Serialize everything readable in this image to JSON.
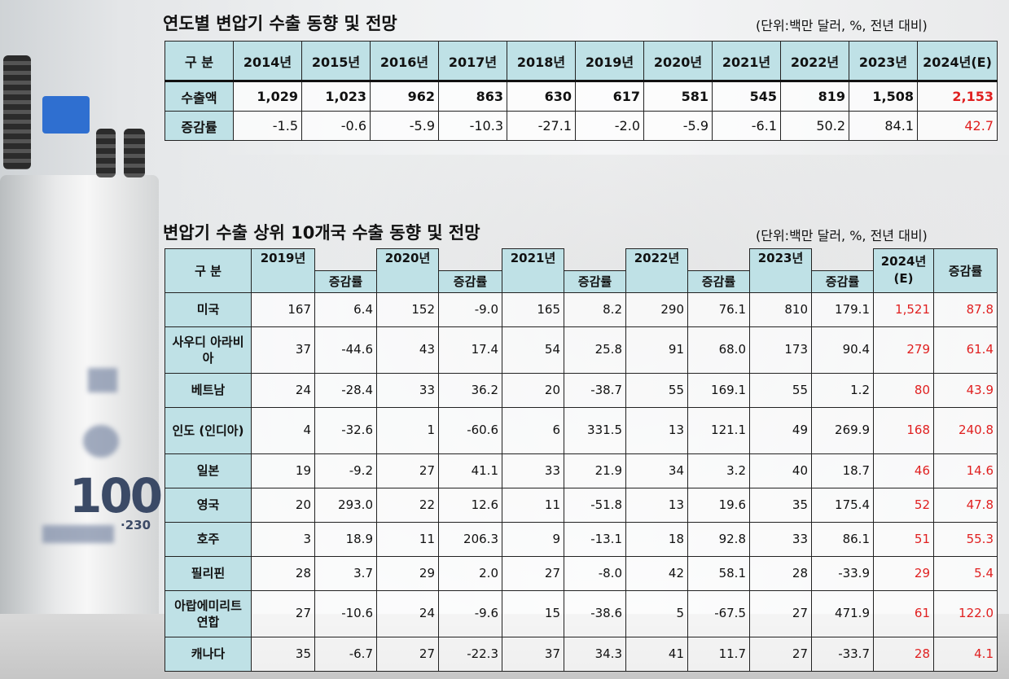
{
  "table1": {
    "title": "연도별 변압기 수출 동향 및 전망",
    "unit": "(단위:백만 달러, %, 전년 대비)",
    "corner": "구   분",
    "years": [
      "2014년",
      "2015년",
      "2016년",
      "2017년",
      "2018년",
      "2019년",
      "2020년",
      "2021년",
      "2022년",
      "2023년",
      "2024년(E)"
    ],
    "rows": [
      {
        "label": "수출액",
        "values": [
          "1,029",
          "1,023",
          "962",
          "863",
          "630",
          "617",
          "581",
          "545",
          "819",
          "1,508",
          "2,153"
        ]
      },
      {
        "label": "증감률",
        "values": [
          "-1.5",
          "-0.6",
          "-5.9",
          "-10.3",
          "-27.1",
          "-2.0",
          "-5.9",
          "-6.1",
          "50.2",
          "84.1",
          "42.7"
        ]
      }
    ]
  },
  "table2": {
    "title": "변압기 수출 상위 10개국 수출 동향 및 전망",
    "unit": "(단위:백만 달러, %, 전년 대비)",
    "corner": "구   분",
    "years": [
      "2019년",
      "2020년",
      "2021년",
      "2022년",
      "2023년",
      "2024년 (E)"
    ],
    "change_label": "증감률",
    "rows": [
      {
        "country": "미국",
        "values": [
          "167",
          "6.4",
          "152",
          "-9.0",
          "165",
          "8.2",
          "290",
          "76.1",
          "810",
          "179.1",
          "1,521",
          "87.8"
        ]
      },
      {
        "country": "사우디 아라비아",
        "values": [
          "37",
          "-44.6",
          "43",
          "17.4",
          "54",
          "25.8",
          "91",
          "68.0",
          "173",
          "90.4",
          "279",
          "61.4"
        ]
      },
      {
        "country": "베트남",
        "values": [
          "24",
          "-28.4",
          "33",
          "36.2",
          "20",
          "-38.7",
          "55",
          "169.1",
          "55",
          "1.2",
          "80",
          "43.9"
        ]
      },
      {
        "country": "인도 (인디아)",
        "values": [
          "4",
          "-32.6",
          "1",
          "-60.6",
          "6",
          "331.5",
          "13",
          "121.1",
          "49",
          "269.9",
          "168",
          "240.8"
        ]
      },
      {
        "country": "일본",
        "values": [
          "19",
          "-9.2",
          "27",
          "41.1",
          "33",
          "21.9",
          "34",
          "3.2",
          "40",
          "18.7",
          "46",
          "14.6"
        ]
      },
      {
        "country": "영국",
        "values": [
          "20",
          "293.0",
          "22",
          "12.6",
          "11",
          "-51.8",
          "13",
          "19.6",
          "35",
          "175.4",
          "52",
          "47.8"
        ]
      },
      {
        "country": "호주",
        "values": [
          "3",
          "18.9",
          "11",
          "206.3",
          "9",
          "-13.1",
          "18",
          "92.8",
          "33",
          "86.1",
          "51",
          "55.3"
        ]
      },
      {
        "country": "필리핀",
        "values": [
          "28",
          "3.7",
          "29",
          "2.0",
          "27",
          "-8.0",
          "42",
          "58.1",
          "28",
          "-33.9",
          "29",
          "5.4"
        ]
      },
      {
        "country": "아랍에미리트 연합",
        "values": [
          "27",
          "-10.6",
          "24",
          "-9.6",
          "15",
          "-38.6",
          "5",
          "-67.5",
          "27",
          "471.9",
          "61",
          "122.0"
        ]
      },
      {
        "country": "캐나다",
        "values": [
          "35",
          "-6.7",
          "27",
          "-22.3",
          "37",
          "34.3",
          "41",
          "11.7",
          "27",
          "-33.7",
          "28",
          "4.1"
        ]
      }
    ]
  },
  "background": {
    "sign_text": "100",
    "sign_suffix": "·230"
  },
  "colors": {
    "header_fill": "#bfe1e6",
    "forecast_red": "#e02020"
  }
}
